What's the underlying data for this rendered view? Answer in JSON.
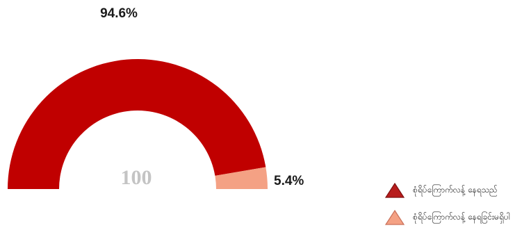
{
  "chart_data": {
    "type": "pie",
    "style": "semicircle-donut",
    "center_label": "100",
    "slices": [
      {
        "label": "စုံရိပ်ကြောက်လန့် နေရသည်",
        "value": 94.6,
        "value_label": "94.6%",
        "color": "#c00000"
      },
      {
        "label": "စုံရိပ်ကြောက်လန့် နေရခြင်းမရှိပါ",
        "value": 5.4,
        "value_label": "5.4%",
        "color": "#f4a184"
      }
    ],
    "legend": {
      "position": "bottom-right",
      "marker": "triangle",
      "items": [
        {
          "label": "စုံရိပ်ကြောက်လန့် နေရသည်",
          "color": "#b71c1c",
          "stroke": "#7f1010"
        },
        {
          "label": "စုံရိပ်ကြောက်လန့် နေရခြင်းမရှိပါ",
          "color": "#f4a184",
          "stroke": "#c9705a"
        }
      ]
    }
  }
}
